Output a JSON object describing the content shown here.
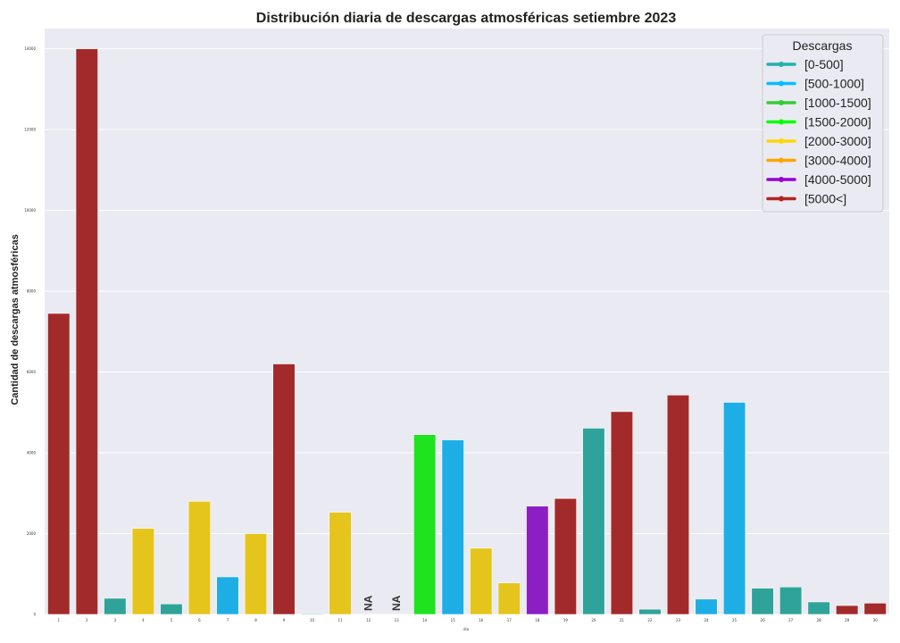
{
  "chart_data": {
    "type": "bar",
    "title": "Distribución diaria de descargas atmosféricas setiembre 2023",
    "xlabel": "dia",
    "ylabel": "Cantidad de descargas atmosféricas",
    "ylim": [
      0,
      14500
    ],
    "yticks": [
      0,
      2000,
      4000,
      6000,
      8000,
      10000,
      12000,
      14000
    ],
    "grid": true,
    "legend_position": "top-right",
    "categories": [
      "1",
      "2",
      "3",
      "4",
      "5",
      "6",
      "7",
      "8",
      "9",
      "10",
      "11",
      "12",
      "13",
      "14",
      "15",
      "16",
      "17",
      "18",
      "19",
      "20",
      "21",
      "22",
      "23",
      "24",
      "25",
      "26",
      "27",
      "28",
      "29",
      "30"
    ],
    "values": [
      7450,
      14000,
      400,
      2130,
      260,
      2800,
      930,
      2000,
      6200,
      20,
      2530,
      null,
      null,
      4450,
      4320,
      1640,
      780,
      2680,
      2870,
      4610,
      5020,
      130,
      5430,
      380,
      5250,
      650,
      680,
      310,
      220,
      280
    ],
    "bar_colors": [
      "#a32a2a",
      "#a32a2a",
      "#2fa39a",
      "#e5c51b",
      "#2fa39a",
      "#e5c51b",
      "#1eaee6",
      "#e5c51b",
      "#a32a2a",
      "#2fa39a",
      "#e5c51b",
      "",
      "",
      "#1fe31f",
      "#1eaee6",
      "#e5c51b",
      "#e5c51b",
      "#8b1fc4",
      "#a32a2a",
      "#2fa39a",
      "#a32a2a",
      "#2fa39a",
      "#a32a2a",
      "#1eaee6",
      "#1eaee6",
      "#2fa39a",
      "#2fa39a",
      "#2fa39a",
      "#a32a2a",
      "#a32a2a"
    ],
    "missing_label": "NA",
    "legend": {
      "title": "Descargas",
      "entries": [
        {
          "label": "[0-500]",
          "color": "#20b2aa"
        },
        {
          "label": "[500-1000]",
          "color": "#00bfff"
        },
        {
          "label": "[1000-1500]",
          "color": "#32cd32"
        },
        {
          "label": "[1500-2000]",
          "color": "#00ff00"
        },
        {
          "label": "[2000-3000]",
          "color": "#ffd700"
        },
        {
          "label": "[3000-4000]",
          "color": "#ffa500"
        },
        {
          "label": "[4000-5000]",
          "color": "#9400d3"
        },
        {
          "label": "[5000<]",
          "color": "#b22222"
        }
      ]
    }
  }
}
